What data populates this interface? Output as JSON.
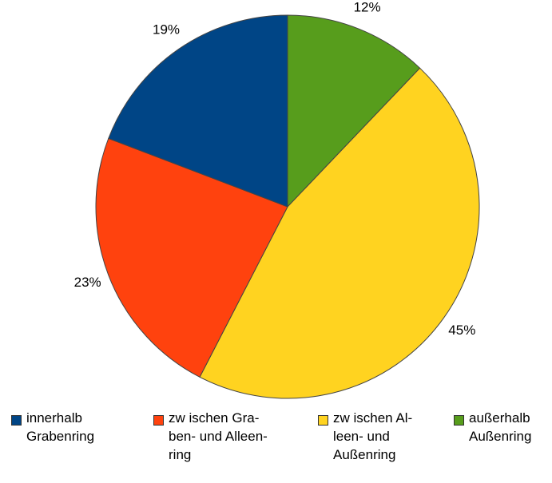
{
  "chart_data": {
    "type": "pie",
    "series": [
      {
        "name": "außerhalb\nAußenring",
        "color": "#579d1c"
      },
      {
        "name": "zw ischen Al-\nleen- und\nAußenring",
        "color": "#ffd320"
      },
      {
        "name": "zw ischen Gra-\nben- und Alleen-\nring",
        "color": "#ff420e"
      },
      {
        "name": "innerhalb\nGrabenring",
        "color": "#004586"
      }
    ],
    "values": [
      12,
      45,
      23,
      19
    ],
    "value_labels": [
      "12%",
      "45%",
      "23%",
      "19%"
    ],
    "legend_order": [
      3,
      2,
      1,
      0
    ]
  }
}
